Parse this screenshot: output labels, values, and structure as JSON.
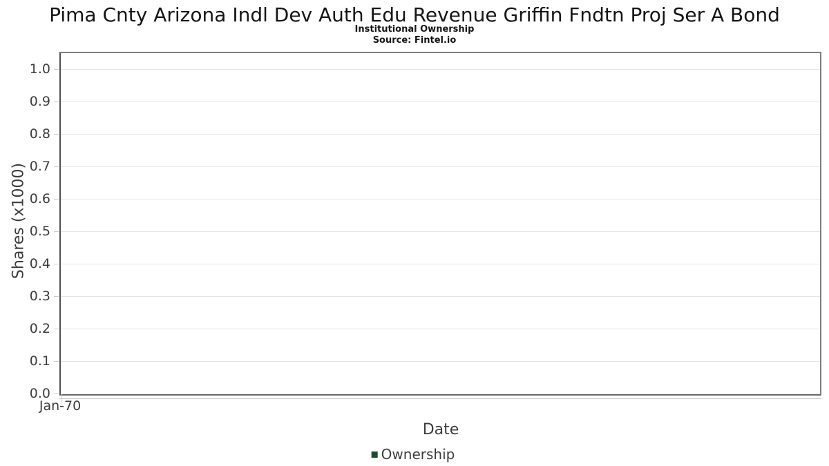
{
  "chart_data": {
    "type": "line",
    "title": "Pima Cnty Arizona Indl Dev Auth Edu Revenue Griffin Fndtn Proj Ser A Bond",
    "subtitle": "Institutional Ownership",
    "source": "Source: Fintel.io",
    "xlabel": "Date",
    "ylabel": "Shares (x1000)",
    "x_ticks": [
      {
        "label": "Jan-70",
        "pos": 0
      }
    ],
    "y_ticks": [
      "0.0",
      "0.1",
      "0.2",
      "0.3",
      "0.4",
      "0.5",
      "0.6",
      "0.7",
      "0.8",
      "0.9",
      "1.0"
    ],
    "ylim": [
      0,
      1.05
    ],
    "grid": "horizontal",
    "legend": {
      "position": "bottom-center",
      "entries": [
        {
          "label": "Ownership",
          "color": "#1e4a28"
        }
      ]
    },
    "series": [
      {
        "name": "Ownership",
        "points": []
      }
    ]
  },
  "colors": {
    "plot_border": "#7e7e7e",
    "grid_line": "#e5e5e5",
    "axis_tick": "#cdcdcd",
    "axis_text": "#3c3c3c",
    "title_text": "#151515",
    "legend_green": "#1e4a28"
  }
}
